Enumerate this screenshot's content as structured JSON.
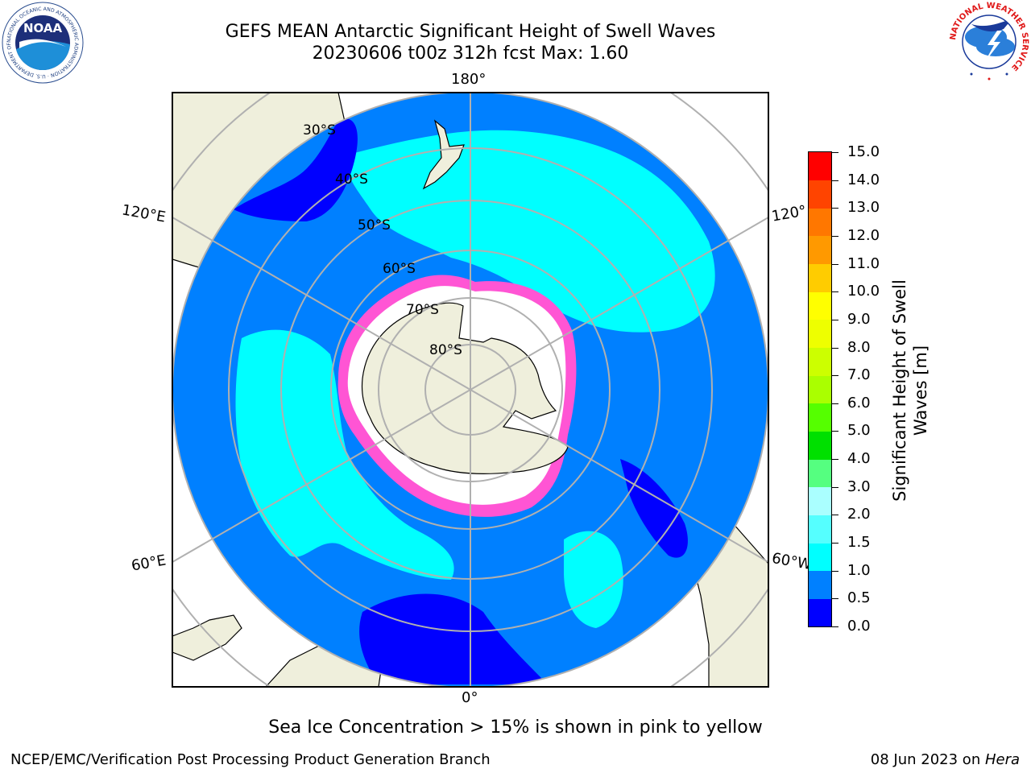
{
  "title": {
    "line1": "GEFS MEAN Antarctic Significant Height of Swell Waves",
    "line2": "20230606 t00z 312h fcst   Max: 1.60"
  },
  "map": {
    "projection": "south-polar-stereographic",
    "longitude_labels": {
      "top": "180°",
      "bottom": "0°",
      "upper_left": "120°E",
      "lower_left": "60°E",
      "upper_right": "120°",
      "lower_right": "60°W"
    },
    "latitude_labels": [
      "30°S",
      "40°S",
      "50°S",
      "60°S",
      "70°S",
      "80°S"
    ],
    "colors": {
      "ocean_0_5_to_1": "#0080ff",
      "ocean_0_to_0_5": "#0000ff",
      "ocean_1_to_1_5": "#00ffff",
      "land": "#efefdc",
      "sea_ice": "#ffffff",
      "ice_edge": "#ff44cc",
      "grid": "#b0b0b0"
    }
  },
  "colorbar": {
    "title": "Significant Height of Swell Waves [m]",
    "ticks": [
      "0.0",
      "0.5",
      "1.0",
      "1.5",
      "2.0",
      "3.0",
      "4.0",
      "5.0",
      "6.0",
      "7.0",
      "8.0",
      "9.0",
      "10.0",
      "11.0",
      "12.0",
      "13.0",
      "14.0",
      "15.0"
    ],
    "colors": [
      "#0000ff",
      "#0080ff",
      "#00ffff",
      "#55ffff",
      "#aaffff",
      "#55ff80",
      "#00e000",
      "#55ff00",
      "#aaff00",
      "#ccff00",
      "#eeff00",
      "#ffff00",
      "#ffcc00",
      "#ff9900",
      "#ff7700",
      "#ff4400",
      "#ff0000"
    ]
  },
  "footnote": "Sea Ice Concentration > 15% is shown in pink to yellow",
  "credits": {
    "left": "NCEP/EMC/Verification Post Processing Product Generation Branch",
    "right_prefix": "08 Jun 2023 on ",
    "right_host": "Hera"
  },
  "logos": {
    "noaa_text": "NOAA",
    "noaa_ring": "NATIONAL OCEANIC AND ATMOSPHERIC ADMINISTRATION · U.S. DEPARTMENT OF COMMERCE",
    "nws_ring": "NATIONAL WEATHER SERVICE"
  }
}
